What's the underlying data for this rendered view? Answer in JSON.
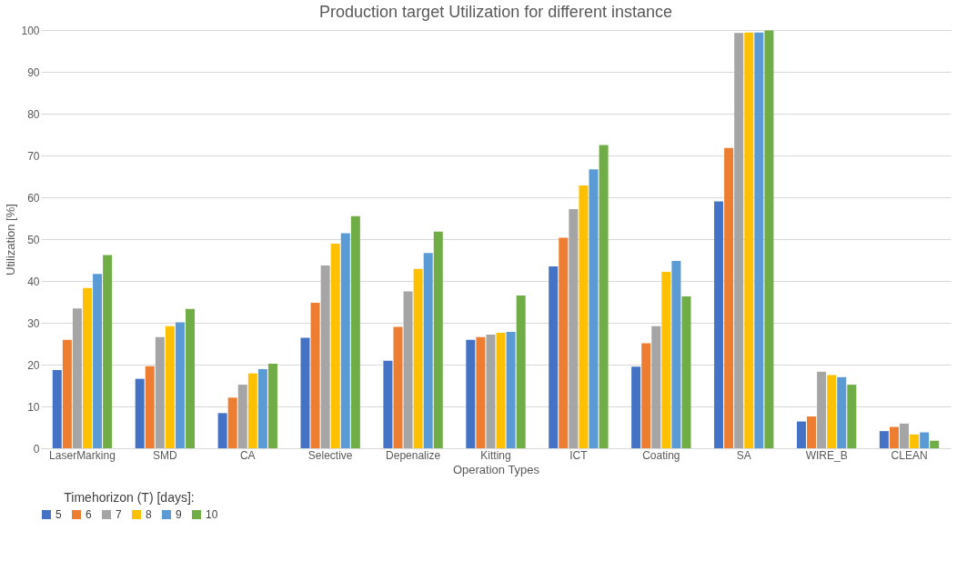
{
  "chart_data": {
    "type": "bar",
    "title": "Production target Utilization for different instance",
    "xlabel": "Operation Types",
    "ylabel": "Utilization [%]",
    "legend_title": "Timehorizon (T) [days]:",
    "categories": [
      "LaserMarking",
      "SMD",
      "CA",
      "Selective",
      "Depenalize",
      "Kitting",
      "ICT",
      "Coating",
      "SA",
      "WIRE_B",
      "CLEAN"
    ],
    "series": [
      {
        "name": "5",
        "color": "#4472c4",
        "values": [
          18.7,
          16.6,
          8.4,
          26.4,
          20.9,
          25.9,
          43.5,
          19.5,
          59.0,
          6.4,
          4.1
        ]
      },
      {
        "name": "6",
        "color": "#ed7d31",
        "values": [
          25.9,
          19.6,
          12.1,
          34.8,
          29.0,
          26.6,
          50.3,
          25.1,
          71.8,
          7.6,
          5.1
        ]
      },
      {
        "name": "7",
        "color": "#a5a5a5",
        "values": [
          33.4,
          26.6,
          15.2,
          43.7,
          37.5,
          27.2,
          57.2,
          29.2,
          99.3,
          18.3,
          5.9
        ]
      },
      {
        "name": "8",
        "color": "#ffc000",
        "values": [
          38.3,
          29.2,
          17.9,
          48.9,
          42.9,
          27.6,
          62.8,
          42.2,
          99.4,
          17.5,
          3.3
        ]
      },
      {
        "name": "9",
        "color": "#5b9bd5",
        "values": [
          41.7,
          30.1,
          18.9,
          51.4,
          46.7,
          27.8,
          66.7,
          44.8,
          99.4,
          17.0,
          3.8
        ]
      },
      {
        "name": "10",
        "color": "#70ad47",
        "values": [
          46.2,
          33.3,
          20.2,
          55.5,
          51.8,
          36.5,
          72.5,
          36.3,
          99.9,
          15.2,
          1.8
        ]
      }
    ],
    "ylim": [
      0,
      100
    ],
    "yticks": [
      0,
      10,
      20,
      30,
      40,
      50,
      60,
      70,
      80,
      90,
      100
    ],
    "grid": "y",
    "legend": "bottom"
  }
}
